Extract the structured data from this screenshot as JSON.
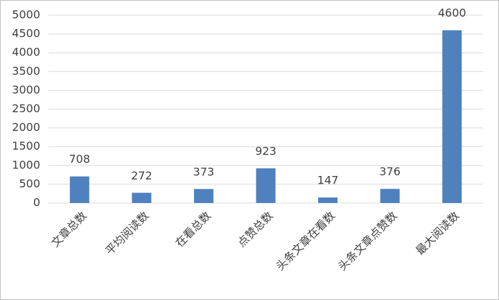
{
  "chart_data": {
    "type": "bar",
    "categories": [
      "文章总数",
      "平均阅读数",
      "在看总数",
      "点赞总数",
      "头条文章在看数",
      "头条文章点赞数",
      "最大阅读数"
    ],
    "values": [
      708,
      272,
      373,
      923,
      147,
      376,
      4600
    ],
    "color": "#4e81bd",
    "ylim": [
      0,
      5000
    ],
    "yticks": [
      0,
      500,
      1000,
      1500,
      2000,
      2500,
      3000,
      3500,
      4000,
      4500,
      5000
    ],
    "grid": true
  }
}
